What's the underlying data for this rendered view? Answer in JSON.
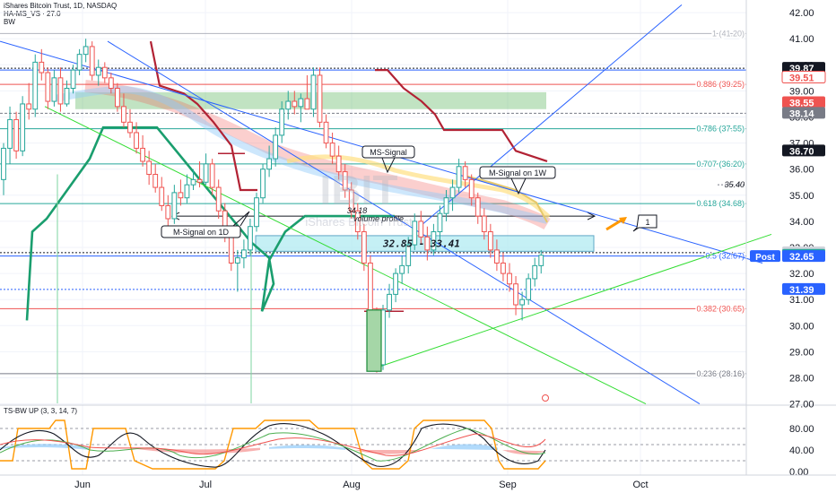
{
  "legend": {
    "line1": "iShares Bitcoin Trust, 1D, NASDAQ",
    "line2": "HA-MS_VS · 27.0",
    "line3": "BW",
    "oscillator": "TS-BW UP (3, 3, 14, 7)"
  },
  "colors": {
    "bull": "#26a69a",
    "bear": "#ef5350",
    "red_line": "#b22234",
    "green_line": "#1a9e6e",
    "blue_line": "#2962ff",
    "lime_line": "#33dd33",
    "orange": "#ff9800",
    "cyan_box": "#b2ebf2"
  },
  "chart_data": {
    "type": "candlestick",
    "x_labels": [
      "Jun",
      "Jul",
      "Aug",
      "Sep",
      "Oct"
    ],
    "ylim": [
      27.0,
      42.0
    ],
    "y_ticks": [
      "27.00",
      "28.00",
      "29.00",
      "30.00",
      "31.00",
      "32.00",
      "33.00",
      "34.00",
      "35.00",
      "36.00",
      "37.00",
      "38.00",
      "39.00",
      "40.00",
      "41.00",
      "42.00"
    ],
    "price_badges": [
      {
        "label": "39.87",
        "value": 39.87,
        "bg": "#131722",
        "fg": "#ffffff"
      },
      {
        "label": "39.51",
        "value": 39.51,
        "bg": "#ffffff",
        "fg": "#ef5350"
      },
      {
        "label": "38.55",
        "value": 38.55,
        "bg": "#ef5350",
        "fg": "#ffffff"
      },
      {
        "label": "38.14",
        "value": 38.14,
        "bg": "#787b86",
        "fg": "#ffffff"
      },
      {
        "label": "36.70",
        "value": 36.7,
        "bg": "#131722",
        "fg": "#ffffff"
      },
      {
        "label": "32.80",
        "value": 32.8,
        "bg": "#d1d4dc",
        "fg": "#131722"
      },
      {
        "label": "32.70",
        "value": 32.7,
        "bg": "#26a69a",
        "fg": "#ffffff"
      },
      {
        "label": "32.65",
        "value": 32.65,
        "bg": "#2962ff",
        "fg": "#ffffff"
      },
      {
        "label": "31.39",
        "value": 31.39,
        "bg": "#2962ff",
        "fg": "#ffffff"
      }
    ],
    "post_label": "Post",
    "fib_levels": [
      {
        "label": "1 (41.20)",
        "value": 41.2,
        "color": "#b2b5be"
      },
      {
        "label": "0.886 (39.25)",
        "value": 39.25,
        "color": "#ef5350"
      },
      {
        "label": "0.786 (37.55)",
        "value": 37.55,
        "color": "#26a69a"
      },
      {
        "label": "0.707 (36.20)",
        "value": 36.2,
        "color": "#26a69a"
      },
      {
        "label": "0.618 (34.68)",
        "value": 34.68,
        "color": "#26a69a"
      },
      {
        "label": "0.5 (32.67)",
        "value": 32.67,
        "color": "#2962ff"
      },
      {
        "label": "0.382 (30.65)",
        "value": 30.65,
        "color": "#ef5350"
      },
      {
        "label": "0.236 (28.16)",
        "value": 28.16,
        "color": "#787b86"
      }
    ],
    "annotations": {
      "price_3540": "35.40",
      "ms_signal": "MS-Signal",
      "m_signal_1w": "M-Signal on 1W",
      "m_signal_1d": "M-Signal on 1D",
      "vp_value": "34.18",
      "vp_label": "volume profile",
      "range_label": "32.85 - 33.41",
      "wave_label": "1",
      "watermark": "IBIT",
      "watermark_sub": "iShares Bitcoin Trust"
    },
    "candles": [
      [
        35.6,
        37.0,
        35.0,
        36.8
      ],
      [
        36.8,
        38.4,
        36.2,
        37.9
      ],
      [
        37.9,
        38.2,
        36.4,
        36.7
      ],
      [
        36.7,
        38.8,
        36.5,
        38.5
      ],
      [
        38.5,
        39.3,
        37.9,
        38.3
      ],
      [
        38.3,
        40.4,
        38.0,
        40.1
      ],
      [
        40.1,
        40.6,
        39.4,
        39.7
      ],
      [
        39.7,
        39.9,
        38.3,
        38.6
      ],
      [
        38.6,
        39.8,
        38.4,
        39.5
      ],
      [
        39.5,
        39.9,
        38.2,
        38.5
      ],
      [
        38.5,
        39.4,
        38.4,
        39.1
      ],
      [
        39.1,
        40.0,
        38.9,
        39.8
      ],
      [
        39.8,
        40.6,
        39.6,
        40.4
      ],
      [
        40.4,
        41.0,
        40.1,
        40.7
      ],
      [
        40.7,
        40.9,
        39.4,
        39.6
      ],
      [
        39.6,
        40.2,
        39.2,
        39.9
      ],
      [
        39.9,
        40.1,
        39.3,
        39.5
      ],
      [
        39.5,
        39.7,
        38.9,
        39.1
      ],
      [
        39.1,
        39.3,
        38.2,
        38.4
      ],
      [
        38.4,
        38.9,
        37.6,
        37.8
      ],
      [
        37.8,
        38.3,
        37.2,
        37.4
      ],
      [
        37.4,
        37.8,
        36.6,
        36.8
      ],
      [
        36.8,
        37.3,
        36.1,
        36.3
      ],
      [
        36.3,
        36.7,
        35.4,
        35.8
      ],
      [
        35.8,
        36.2,
        35.1,
        35.3
      ],
      [
        35.3,
        35.7,
        34.4,
        34.6
      ],
      [
        34.6,
        35.0,
        33.8,
        34.1
      ],
      [
        34.1,
        35.4,
        33.9,
        35.1
      ],
      [
        35.1,
        35.6,
        34.6,
        34.9
      ],
      [
        34.9,
        35.8,
        34.7,
        35.4
      ],
      [
        35.4,
        36.0,
        35.2,
        35.6
      ],
      [
        35.6,
        36.3,
        35.3,
        35.5
      ],
      [
        35.5,
        36.6,
        35.4,
        36.2
      ],
      [
        36.2,
        36.4,
        35.0,
        35.3
      ],
      [
        35.3,
        35.6,
        34.1,
        34.4
      ],
      [
        34.4,
        34.7,
        33.2,
        33.5
      ],
      [
        33.5,
        33.8,
        32.1,
        32.4
      ],
      [
        32.4,
        32.9,
        31.3,
        32.6
      ],
      [
        32.6,
        33.3,
        32.2,
        32.9
      ],
      [
        32.9,
        34.1,
        32.7,
        33.8
      ],
      [
        33.8,
        35.1,
        33.6,
        34.9
      ],
      [
        34.9,
        36.2,
        34.7,
        36.0
      ],
      [
        36.0,
        36.9,
        35.7,
        36.4
      ],
      [
        36.4,
        37.6,
        36.1,
        37.3
      ],
      [
        37.3,
        38.6,
        37.0,
        38.3
      ],
      [
        38.3,
        39.0,
        37.9,
        38.6
      ],
      [
        38.6,
        39.0,
        38.1,
        38.4
      ],
      [
        38.4,
        38.9,
        37.8,
        38.7
      ],
      [
        38.7,
        39.6,
        38.3,
        38.3
      ],
      [
        38.3,
        39.9,
        38.0,
        39.6
      ],
      [
        39.6,
        39.9,
        37.6,
        37.8
      ],
      [
        37.8,
        38.1,
        36.8,
        37.0
      ],
      [
        37.0,
        37.4,
        36.2,
        36.5
      ],
      [
        36.5,
        36.9,
        35.6,
        35.9
      ],
      [
        35.9,
        36.2,
        34.9,
        35.2
      ],
      [
        35.2,
        35.5,
        34.1,
        34.4
      ],
      [
        34.4,
        34.7,
        33.3,
        33.6
      ],
      [
        33.6,
        33.9,
        32.1,
        32.4
      ],
      [
        32.4,
        32.7,
        30.0,
        30.6
      ],
      [
        30.6,
        30.7,
        28.2,
        28.5
      ],
      [
        28.5,
        30.8,
        28.3,
        30.6
      ],
      [
        30.6,
        31.6,
        30.3,
        31.2
      ],
      [
        31.2,
        32.2,
        30.9,
        32.0
      ],
      [
        32.0,
        32.7,
        31.6,
        32.3
      ],
      [
        32.3,
        33.4,
        32.0,
        33.1
      ],
      [
        33.1,
        34.3,
        32.9,
        34.0
      ],
      [
        34.0,
        34.4,
        33.1,
        33.4
      ],
      [
        33.4,
        33.8,
        32.5,
        32.9
      ],
      [
        32.9,
        33.9,
        32.7,
        33.6
      ],
      [
        33.6,
        34.6,
        33.3,
        34.3
      ],
      [
        34.3,
        35.2,
        34.0,
        34.9
      ],
      [
        34.9,
        35.6,
        34.4,
        35.3
      ],
      [
        35.3,
        36.4,
        35.1,
        36.1
      ],
      [
        36.1,
        36.3,
        35.3,
        35.6
      ],
      [
        35.6,
        35.8,
        34.6,
        34.9
      ],
      [
        34.9,
        35.1,
        33.9,
        34.2
      ],
      [
        34.2,
        34.5,
        33.3,
        33.6
      ],
      [
        33.6,
        33.9,
        32.6,
        32.9
      ],
      [
        32.9,
        33.3,
        32.1,
        32.4
      ],
      [
        32.4,
        32.8,
        31.7,
        32.0
      ],
      [
        32.0,
        32.4,
        31.3,
        31.6
      ],
      [
        31.6,
        31.9,
        30.4,
        30.8
      ],
      [
        30.8,
        31.3,
        30.2,
        31.0
      ],
      [
        31.0,
        32.0,
        30.8,
        31.8
      ],
      [
        31.8,
        32.6,
        31.5,
        32.3
      ],
      [
        32.3,
        32.9,
        32.0,
        32.7
      ]
    ],
    "oscillator": {
      "ylim": [
        0,
        100
      ],
      "tick_labels": [
        "0.00",
        "40.00",
        "80.00"
      ],
      "tick_values": [
        0,
        40,
        80
      ],
      "dashed_levels": [
        20,
        50,
        80
      ]
    }
  }
}
